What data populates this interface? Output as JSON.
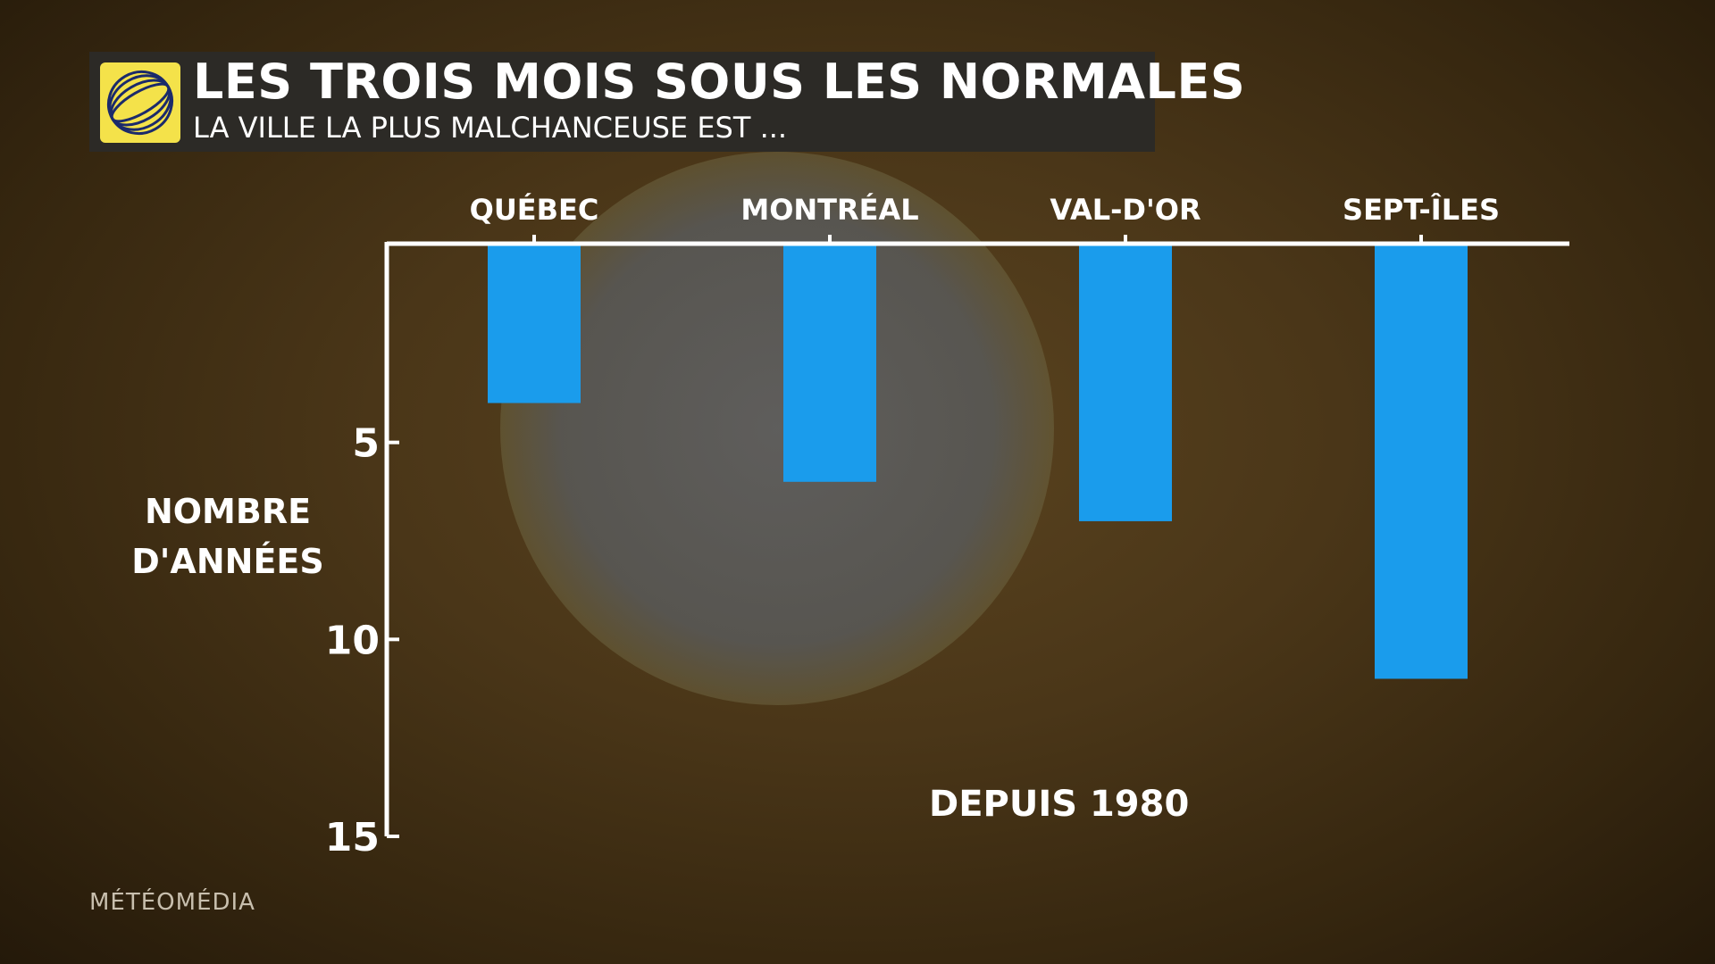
{
  "header": {
    "title": "LES TROIS MOIS SOUS LES NORMALES",
    "subtitle": "LA VILLE LA PLUS MALCHANCEUSE EST ...",
    "logo_icon": "meteomedia-globe-icon"
  },
  "annotation": "DEPUIS 1980",
  "watermark": "MÉTÉOMÉDIA",
  "colors": {
    "bar": "#1a9cec",
    "axis": "#ffffff",
    "header_bg": "#2c2a26",
    "logo_bg": "#f4e24a"
  },
  "chart_data": {
    "type": "bar",
    "categories": [
      "QUÉBEC",
      "MONTRÉAL",
      "VAL-D'OR",
      "SEPT-ÎLES"
    ],
    "values": [
      4,
      6,
      7,
      11
    ],
    "ylabel": "NOMBRE D'ANNÉES",
    "ylim": [
      0,
      15
    ],
    "yticks": [
      5,
      10,
      15
    ],
    "inverted_y": true,
    "x_axis_position": "top",
    "grid": false,
    "legend": "none"
  }
}
